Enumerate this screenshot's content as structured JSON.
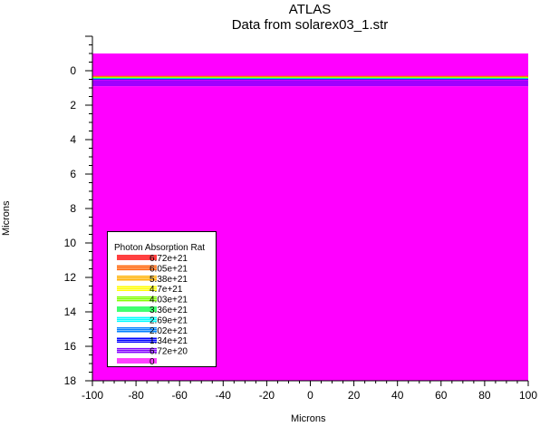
{
  "header": {
    "title": "ATLAS",
    "subtitle": "Data from solarex03_1.str"
  },
  "chart_data": {
    "type": "heatmap",
    "title": "ATLAS",
    "subtitle": "Data from solarex03_1.str",
    "xlabel": "Microns",
    "ylabel": "Microns",
    "xlim": [
      -100,
      100
    ],
    "ylim": [
      18,
      -2
    ],
    "xticks": [
      -100,
      -80,
      -60,
      -40,
      -20,
      0,
      20,
      40,
      60,
      80,
      100
    ],
    "yticks": [
      0,
      2,
      4,
      6,
      8,
      10,
      12,
      14,
      16,
      18
    ],
    "quantity": "Photon Absorption Rate",
    "legend": {
      "title": "Photon Absorption Rat",
      "placement": "bottom-left",
      "labels": [
        "6.72e+21",
        "6.05e+21",
        "5.38e+21",
        "4.7e+21",
        "4.03e+21",
        "3.36e+21",
        "2.69e+21",
        "2.02e+21",
        "1.34e+21",
        "6.72e+20",
        "0"
      ],
      "colors": [
        "#ff0000",
        "#ff6000",
        "#ffb000",
        "#ffff00",
        "#80ff00",
        "#00ff40",
        "#00ffff",
        "#0080ff",
        "#0000ff",
        "#8000ff",
        "#ff00ff"
      ]
    },
    "regions": [
      {
        "y_from": -1.0,
        "y_to": 0.3,
        "color": "#ff00ff"
      },
      {
        "y_from": 0.3,
        "y_to": 0.55,
        "color_scale": "gradient"
      },
      {
        "y_from": 0.55,
        "y_to": 0.9,
        "color": "#a000ff"
      },
      {
        "y_from": 0.9,
        "y_to": 18,
        "color": "#ff00ff"
      }
    ],
    "grid": false
  }
}
